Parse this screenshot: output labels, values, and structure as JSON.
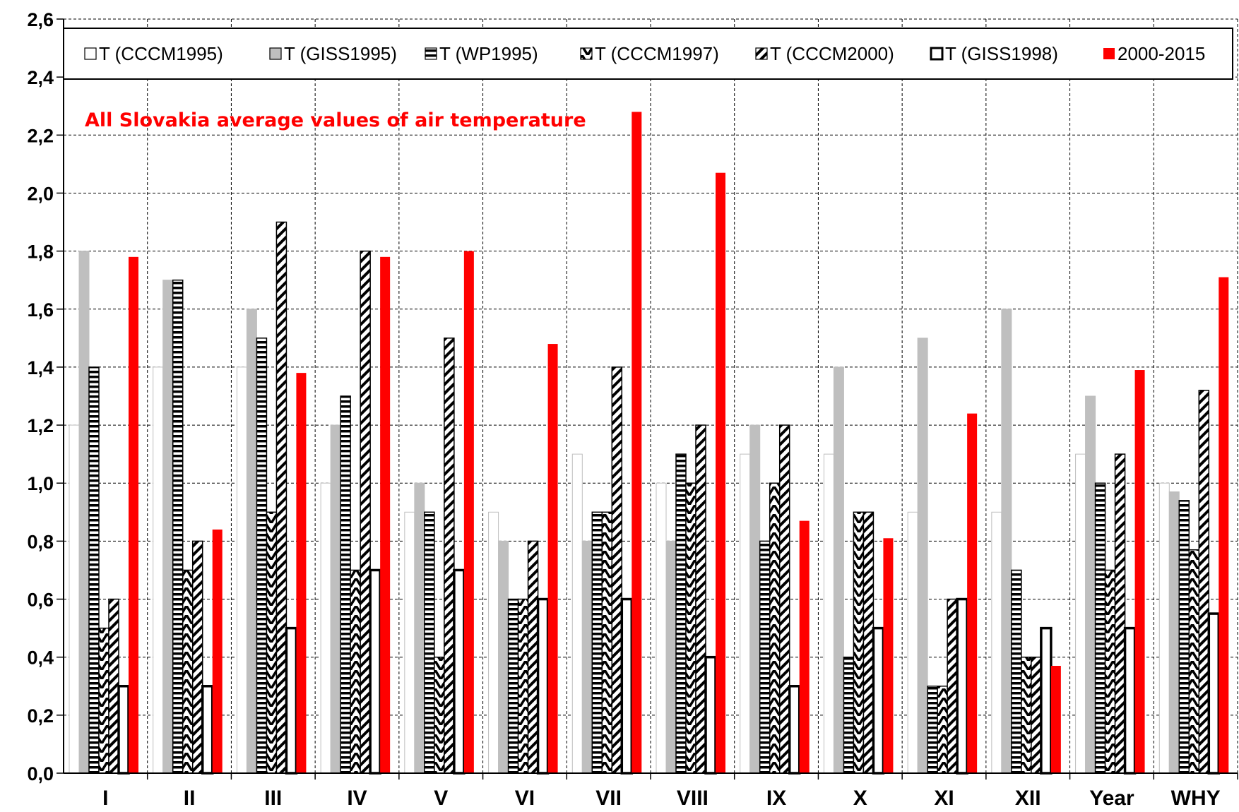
{
  "chart_data": {
    "type": "bar",
    "title": "",
    "xlabel": "",
    "ylabel": "",
    "ylim": [
      0,
      2.6
    ],
    "y_ticks": [
      "0,0",
      "0,2",
      "0,4",
      "0,6",
      "0,8",
      "1,0",
      "1,2",
      "1,4",
      "1,6",
      "1,8",
      "2,0",
      "2,2",
      "2,4",
      "2,6"
    ],
    "grid": true,
    "legend_position": "top",
    "annotation": "All Slovakia average values of air temperature",
    "categories": [
      "I",
      "II",
      "III",
      "IV",
      "V",
      "VI",
      "VII",
      "VIII",
      "IX",
      "X",
      "XI",
      "XII",
      "Year",
      "WHY"
    ],
    "series": [
      {
        "name": "T (CCCM1995)",
        "pattern": "white",
        "values": [
          1.2,
          1.4,
          1.4,
          1.0,
          0.9,
          0.9,
          1.1,
          1.0,
          1.1,
          1.1,
          0.9,
          0.9,
          1.1,
          1.0
        ]
      },
      {
        "name": "T (GISS1995)",
        "pattern": "gray",
        "values": [
          1.8,
          1.7,
          1.6,
          1.2,
          1.0,
          0.8,
          0.8,
          0.8,
          1.2,
          1.4,
          1.5,
          1.6,
          1.3,
          0.97
        ]
      },
      {
        "name": "T (WP1995)",
        "pattern": "hstripe",
        "values": [
          1.4,
          1.7,
          1.5,
          1.3,
          0.9,
          0.6,
          0.9,
          1.1,
          0.8,
          0.4,
          0.3,
          0.7,
          1.0,
          0.94
        ]
      },
      {
        "name": "T (CCCM1997)",
        "pattern": "chevron",
        "values": [
          0.5,
          0.7,
          0.9,
          0.7,
          0.4,
          0.6,
          0.9,
          1.0,
          1.0,
          0.9,
          0.3,
          0.4,
          0.7,
          0.77
        ]
      },
      {
        "name": "T (CCCM2000)",
        "pattern": "diag",
        "values": [
          0.6,
          0.8,
          1.9,
          1.8,
          1.5,
          0.8,
          1.4,
          1.2,
          1.2,
          0.9,
          0.6,
          0.4,
          1.1,
          1.32
        ]
      },
      {
        "name": "T (GISS1998)",
        "pattern": "thickoutline",
        "values": [
          0.3,
          0.3,
          0.5,
          0.7,
          0.7,
          0.6,
          0.6,
          0.4,
          0.3,
          0.5,
          0.6,
          0.5,
          0.5,
          0.55
        ]
      },
      {
        "name": "2000-2015",
        "pattern": "red",
        "values": [
          1.78,
          0.84,
          1.38,
          1.78,
          1.8,
          1.48,
          2.28,
          2.07,
          0.87,
          0.81,
          1.24,
          0.37,
          1.39,
          1.71
        ]
      }
    ],
    "colors": {
      "red": "#ff0000",
      "gray": "#bfbfbf",
      "white": "#ffffff",
      "black": "#000000"
    }
  }
}
